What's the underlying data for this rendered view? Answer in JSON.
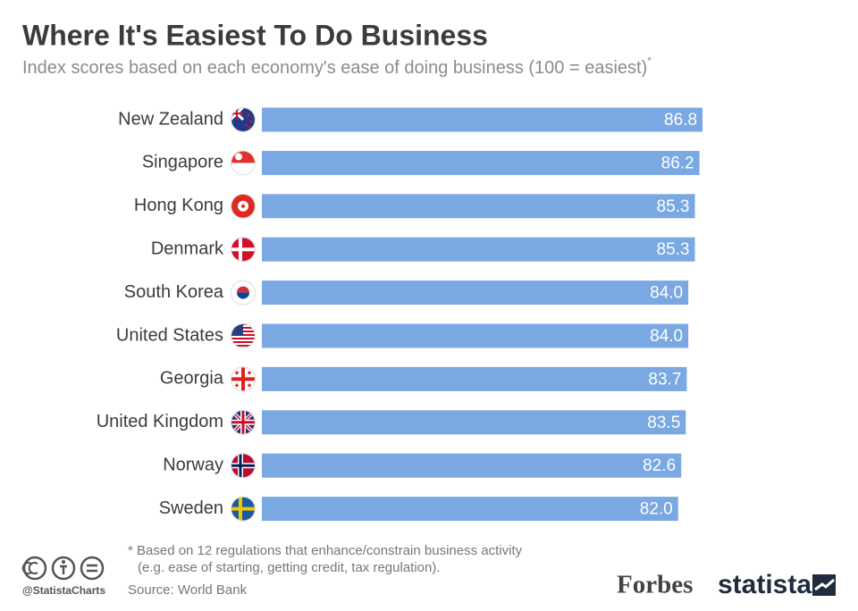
{
  "chart_data": {
    "type": "bar",
    "orientation": "horizontal",
    "title": "Where It's Easiest To Do Business",
    "subtitle": "Index scores based on each economy's ease of doing business (100 = easiest)",
    "subtitle_mark": "*",
    "categories": [
      "New Zealand",
      "Singapore",
      "Hong Kong",
      "Denmark",
      "South Korea",
      "United States",
      "Georgia",
      "United Kingdom",
      "Norway",
      "Sweden"
    ],
    "values": [
      86.8,
      86.2,
      85.3,
      85.3,
      84.0,
      84.0,
      83.7,
      83.5,
      82.6,
      82.0
    ],
    "value_labels": [
      "86.8",
      "86.2",
      "85.3",
      "85.3",
      "84.0",
      "84.0",
      "83.7",
      "83.5",
      "82.6",
      "82.0"
    ],
    "color": "#7aa8e2",
    "footnote": [
      "* Based on 12 regulations that enhance/constrain business activity",
      "(e.g. ease of starting, getting credit, tax regulation)."
    ],
    "source": "Source: World Bank",
    "credit": "@StatistaCharts",
    "logos": [
      "Forbes",
      "statista"
    ]
  }
}
